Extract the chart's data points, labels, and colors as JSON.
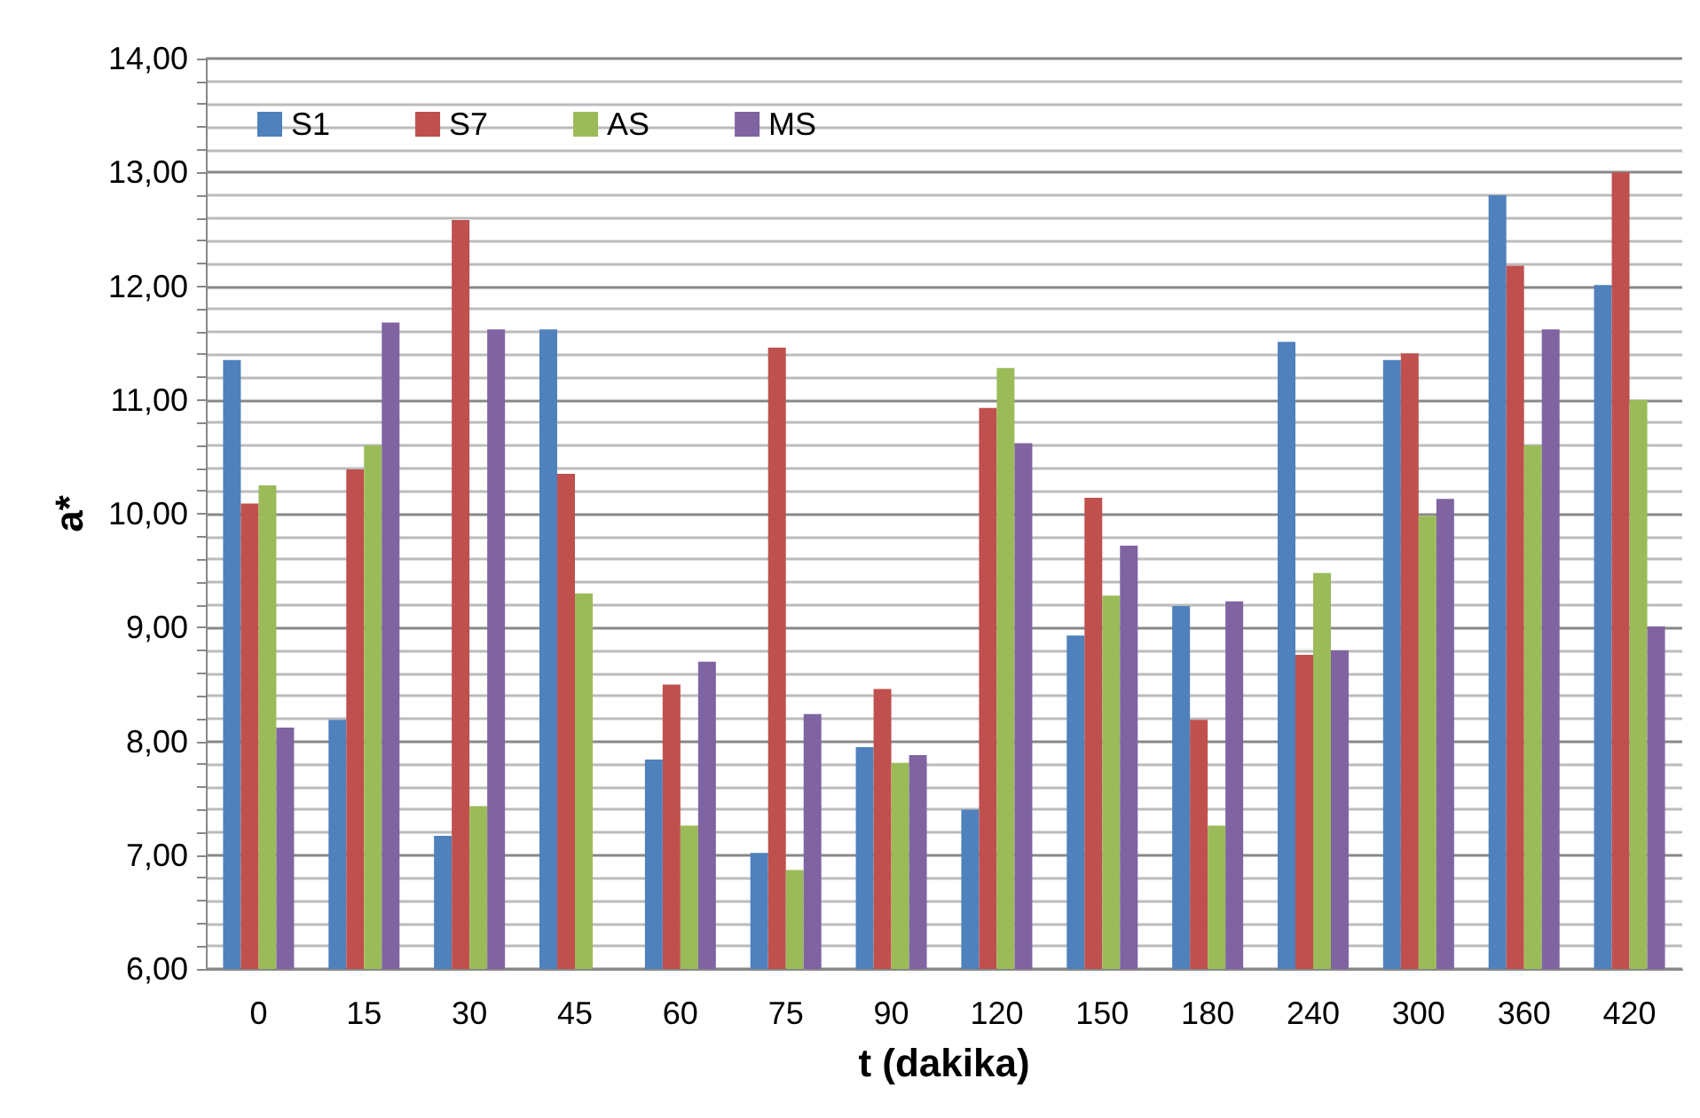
{
  "chart_data": {
    "type": "bar",
    "xlabel": "t (dakika)",
    "ylabel": "a*",
    "categories": [
      "0",
      "15",
      "30",
      "45",
      "60",
      "75",
      "90",
      "120",
      "150",
      "180",
      "240",
      "300",
      "360",
      "420"
    ],
    "series": [
      {
        "name": "S1",
        "color": "#4f81bd",
        "values": [
          11.35,
          8.19,
          7.17,
          11.62,
          7.84,
          7.02,
          7.95,
          7.4,
          8.93,
          9.19,
          11.51,
          11.35,
          12.8,
          12.01
        ]
      },
      {
        "name": "S7",
        "color": "#c0504d",
        "values": [
          10.09,
          10.39,
          12.58,
          10.35,
          8.5,
          11.46,
          8.46,
          10.93,
          10.14,
          8.19,
          8.76,
          11.41,
          12.18,
          13.0
        ]
      },
      {
        "name": "AS",
        "color": "#9bbb59",
        "values": [
          10.25,
          10.6,
          7.43,
          9.3,
          7.26,
          6.87,
          7.81,
          11.28,
          9.28,
          7.26,
          9.48,
          9.98,
          10.6,
          11.0
        ]
      },
      {
        "name": "MS",
        "color": "#8064a2",
        "values": [
          8.12,
          11.68,
          11.62,
          6.0,
          8.7,
          8.24,
          7.88,
          10.62,
          9.72,
          9.23,
          8.8,
          10.13,
          11.62,
          9.01
        ]
      }
    ],
    "ylim": [
      6,
      14
    ],
    "yticks": [
      {
        "value": 6,
        "label": "6,00"
      },
      {
        "value": 6.2,
        "label": null
      },
      {
        "value": 6.4,
        "label": null
      },
      {
        "value": 6.6,
        "label": null
      },
      {
        "value": 6.8,
        "label": null
      },
      {
        "value": 7,
        "label": "7,00"
      },
      {
        "value": 7.2,
        "label": null
      },
      {
        "value": 7.4,
        "label": null
      },
      {
        "value": 7.6,
        "label": null
      },
      {
        "value": 7.8,
        "label": null
      },
      {
        "value": 8,
        "label": "8,00"
      },
      {
        "value": 8.2,
        "label": null
      },
      {
        "value": 8.4,
        "label": null
      },
      {
        "value": 8.6,
        "label": null
      },
      {
        "value": 8.8,
        "label": null
      },
      {
        "value": 9,
        "label": "9,00"
      },
      {
        "value": 9.2,
        "label": null
      },
      {
        "value": 9.4,
        "label": null
      },
      {
        "value": 9.6,
        "label": null
      },
      {
        "value": 9.8,
        "label": null
      },
      {
        "value": 10,
        "label": "10,00"
      },
      {
        "value": 10.2,
        "label": null
      },
      {
        "value": 10.4,
        "label": null
      },
      {
        "value": 10.6,
        "label": null
      },
      {
        "value": 10.8,
        "label": null
      },
      {
        "value": 11,
        "label": "11,00"
      },
      {
        "value": 11.2,
        "label": null
      },
      {
        "value": 11.4,
        "label": null
      },
      {
        "value": 11.6,
        "label": null
      },
      {
        "value": 11.8,
        "label": null
      },
      {
        "value": 12,
        "label": "12,00"
      },
      {
        "value": 12.2,
        "label": null
      },
      {
        "value": 12.4,
        "label": null
      },
      {
        "value": 12.6,
        "label": null
      },
      {
        "value": 12.8,
        "label": null
      },
      {
        "value": 13,
        "label": "13,00"
      },
      {
        "value": 13.2,
        "label": null
      },
      {
        "value": 13.4,
        "label": null
      },
      {
        "value": 13.6,
        "label": null
      },
      {
        "value": 13.8,
        "label": null
      },
      {
        "value": 14,
        "label": "14,00"
      }
    ],
    "grid": true,
    "legend": "top left"
  }
}
